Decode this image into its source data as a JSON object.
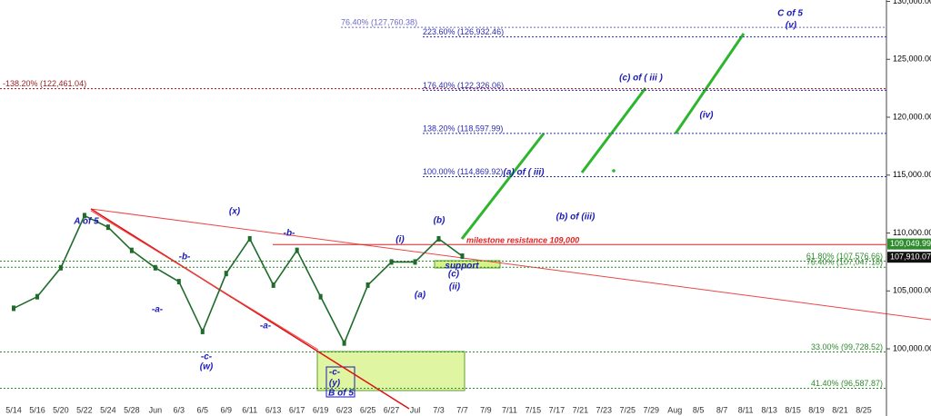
{
  "chart_data": {
    "type": "line",
    "categories": [
      "5/14",
      "5/16",
      "5/20",
      "5/22",
      "5/24",
      "5/28",
      "Jun",
      "6/3",
      "6/5",
      "6/9",
      "6/11",
      "6/13",
      "6/17",
      "6/19",
      "6/23",
      "6/25",
      "6/27",
      "Jul",
      "7/3",
      "7/7",
      "7/9",
      "7/11",
      "7/15",
      "7/17",
      "7/21",
      "7/23",
      "7/25",
      "7/29",
      "Aug",
      "8/5",
      "8/7",
      "8/11",
      "8/13",
      "8/15",
      "8/19",
      "8/21",
      "8/25"
    ],
    "series": [
      {
        "color": "#1f6b2a",
        "values": [
          103500,
          104500,
          107000,
          111500,
          110500,
          108500,
          107000,
          105800,
          101500,
          106500,
          109500,
          105500,
          108500,
          104500,
          100500,
          105500,
          107500,
          107500,
          109500,
          108000,
          null,
          null,
          null,
          null,
          null,
          null,
          null,
          null,
          null,
          null,
          null,
          null,
          null,
          null,
          null,
          null,
          null
        ]
      }
    ],
    "ylim": [
      94200,
      130120
    ],
    "yticks": [
      {
        "value": 100000,
        "label": "100,000.00"
      },
      {
        "value": 105000,
        "label": "105,000.00"
      },
      {
        "value": 110000,
        "label": "110,000.00"
      },
      {
        "value": 115000,
        "label": "115,000.00"
      },
      {
        "value": 120000,
        "label": "120,000.00"
      },
      {
        "value": 125000,
        "label": "125,000.00"
      },
      {
        "value": 130000,
        "label": "130,000.00"
      }
    ],
    "levels": [
      {
        "value": 127760.38,
        "label": "76.40% (127,760.38)",
        "color": "#6a6ac8"
      },
      {
        "value": 126932.46,
        "label": "223.60% (126,932.46)",
        "color": "#2b2bb0"
      },
      {
        "value": 122461.04,
        "label": "-138.20% (122,461.04)",
        "color": "#9b1b1b"
      },
      {
        "value": 122326.06,
        "label": "176.40% (122,326.06)",
        "color": "#2b2bb0"
      },
      {
        "value": 118597.99,
        "label": "138.20% (118,597.99)",
        "color": "#2b2bb0"
      },
      {
        "value": 114869.92,
        "label": "100.00% (114,869.92)",
        "color": "#2b2bb0"
      },
      {
        "value": 107576.66,
        "label": "61.80% (107,576.66)",
        "color": "#2e8b2e"
      },
      {
        "value": 107047.18,
        "label": "76.40% (107,047.18)",
        "color": "#2e8b2e"
      },
      {
        "value": 99728.52,
        "label": "33.00% (99,728.52)",
        "color": "#2e8b2e"
      },
      {
        "value": 96587.87,
        "label": "41.40% (96,587.87)",
        "color": "#2e8b2e"
      }
    ],
    "resistance": {
      "value": 109000,
      "label": "milestone resistance 109,000",
      "color": "#e02020"
    },
    "price_tags": [
      {
        "value": 109049.99,
        "label": "109,049.99",
        "color": "#2e8b2e"
      },
      {
        "value": 107910.07,
        "label": "107,910.07",
        "color": "#111111"
      }
    ],
    "annotations": [
      "A of 5",
      "(x)",
      "-b-",
      "-b-",
      "-a-",
      "-a-",
      "-c-",
      "(w)",
      "(i)",
      "(b)",
      "(a)",
      "(c)",
      "(ii)",
      "support",
      "-c-",
      "(y)",
      "B of 5",
      "(a) of ( iii)",
      "(b) of (iii)",
      "(c) of ( iii )",
      "(iv)",
      "C of 5",
      "(v)"
    ]
  }
}
